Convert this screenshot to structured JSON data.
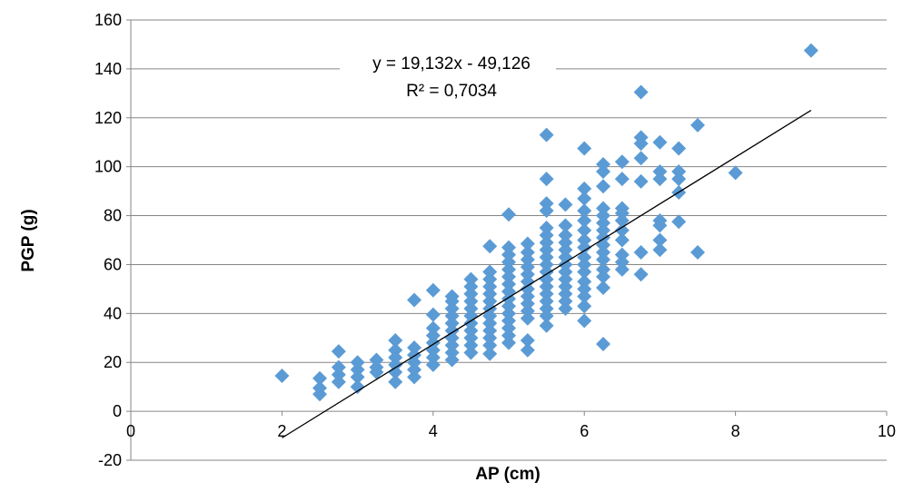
{
  "chart_data": {
    "type": "scatter",
    "title": "",
    "xlabel": "AP (cm)",
    "ylabel": "PGP (g)",
    "xlim": [
      0,
      10
    ],
    "ylim": [
      -20,
      160
    ],
    "x_ticks": [
      0,
      2,
      4,
      6,
      8,
      10
    ],
    "y_ticks": [
      -20,
      0,
      20,
      40,
      60,
      80,
      100,
      120,
      140,
      160
    ],
    "grid": "horizontal",
    "legend": "none",
    "colors": {
      "points": "#5b9bd5",
      "trendline": "#000000",
      "grid": "#868686"
    },
    "trendline": {
      "equation": "y = 19,132x - 49,126",
      "r2": "R² = 0,7034",
      "slope": 19.132,
      "intercept": -49.126,
      "x_range": [
        2,
        9
      ]
    },
    "series": [
      {
        "points": [
          [
            2.0,
            14.5
          ],
          [
            2.5,
            7
          ],
          [
            2.5,
            9.5
          ],
          [
            2.5,
            13.5
          ],
          [
            2.75,
            12
          ],
          [
            2.75,
            15
          ],
          [
            2.75,
            18
          ],
          [
            2.75,
            24.5
          ],
          [
            3.0,
            10
          ],
          [
            3.0,
            14
          ],
          [
            3.0,
            17
          ],
          [
            3.0,
            20
          ],
          [
            3.25,
            16
          ],
          [
            3.25,
            18
          ],
          [
            3.25,
            21
          ],
          [
            3.5,
            12
          ],
          [
            3.5,
            16
          ],
          [
            3.5,
            19
          ],
          [
            3.5,
            22
          ],
          [
            3.5,
            25
          ],
          [
            3.5,
            29
          ],
          [
            3.75,
            14
          ],
          [
            3.75,
            17
          ],
          [
            3.75,
            20
          ],
          [
            3.75,
            23
          ],
          [
            3.75,
            26
          ],
          [
            3.75,
            45.5
          ],
          [
            4.0,
            19
          ],
          [
            4.0,
            22
          ],
          [
            4.0,
            25
          ],
          [
            4.0,
            28
          ],
          [
            4.0,
            31
          ],
          [
            4.0,
            34
          ],
          [
            4.0,
            39.5
          ],
          [
            4.0,
            49.5
          ],
          [
            4.25,
            21
          ],
          [
            4.25,
            24
          ],
          [
            4.25,
            27
          ],
          [
            4.25,
            30
          ],
          [
            4.25,
            33
          ],
          [
            4.25,
            36
          ],
          [
            4.25,
            39
          ],
          [
            4.25,
            42
          ],
          [
            4.25,
            45
          ],
          [
            4.25,
            47
          ],
          [
            4.5,
            24
          ],
          [
            4.5,
            27
          ],
          [
            4.5,
            30
          ],
          [
            4.5,
            33
          ],
          [
            4.5,
            36
          ],
          [
            4.5,
            39
          ],
          [
            4.5,
            42
          ],
          [
            4.5,
            45
          ],
          [
            4.5,
            48
          ],
          [
            4.5,
            51
          ],
          [
            4.5,
            54
          ],
          [
            4.75,
            23.5
          ],
          [
            4.75,
            27
          ],
          [
            4.75,
            30
          ],
          [
            4.75,
            33
          ],
          [
            4.75,
            36
          ],
          [
            4.75,
            39
          ],
          [
            4.75,
            42
          ],
          [
            4.75,
            45
          ],
          [
            4.75,
            48
          ],
          [
            4.75,
            51
          ],
          [
            4.75,
            54
          ],
          [
            4.75,
            57
          ],
          [
            4.75,
            67.5
          ],
          [
            5.0,
            28
          ],
          [
            5.0,
            31
          ],
          [
            5.0,
            34
          ],
          [
            5.0,
            37
          ],
          [
            5.0,
            40
          ],
          [
            5.0,
            43
          ],
          [
            5.0,
            46
          ],
          [
            5.0,
            49
          ],
          [
            5.0,
            52
          ],
          [
            5.0,
            55
          ],
          [
            5.0,
            58
          ],
          [
            5.0,
            61
          ],
          [
            5.0,
            64
          ],
          [
            5.0,
            67
          ],
          [
            5.0,
            80.5
          ],
          [
            5.25,
            25
          ],
          [
            5.25,
            29
          ],
          [
            5.25,
            38
          ],
          [
            5.25,
            41
          ],
          [
            5.25,
            44
          ],
          [
            5.25,
            47
          ],
          [
            5.25,
            50
          ],
          [
            5.25,
            53
          ],
          [
            5.25,
            56
          ],
          [
            5.25,
            59
          ],
          [
            5.25,
            62
          ],
          [
            5.25,
            65
          ],
          [
            5.25,
            68.5
          ],
          [
            5.5,
            35
          ],
          [
            5.5,
            39
          ],
          [
            5.5,
            42
          ],
          [
            5.5,
            45
          ],
          [
            5.5,
            48
          ],
          [
            5.5,
            51
          ],
          [
            5.5,
            54
          ],
          [
            5.5,
            57
          ],
          [
            5.5,
            60
          ],
          [
            5.5,
            63
          ],
          [
            5.5,
            66
          ],
          [
            5.5,
            69
          ],
          [
            5.5,
            72
          ],
          [
            5.5,
            75
          ],
          [
            5.5,
            82
          ],
          [
            5.5,
            85
          ],
          [
            5.5,
            95
          ],
          [
            5.5,
            113
          ],
          [
            5.75,
            42
          ],
          [
            5.75,
            45
          ],
          [
            5.75,
            48
          ],
          [
            5.75,
            51
          ],
          [
            5.75,
            54
          ],
          [
            5.75,
            57
          ],
          [
            5.75,
            60
          ],
          [
            5.75,
            63
          ],
          [
            5.75,
            66
          ],
          [
            5.75,
            69
          ],
          [
            5.75,
            72
          ],
          [
            5.75,
            76
          ],
          [
            5.75,
            84.5
          ],
          [
            6.0,
            37
          ],
          [
            6.0,
            43
          ],
          [
            6.0,
            47
          ],
          [
            6.0,
            50
          ],
          [
            6.0,
            53
          ],
          [
            6.0,
            57
          ],
          [
            6.0,
            60
          ],
          [
            6.0,
            63
          ],
          [
            6.0,
            67
          ],
          [
            6.0,
            70
          ],
          [
            6.0,
            74
          ],
          [
            6.0,
            78
          ],
          [
            6.0,
            82
          ],
          [
            6.0,
            87
          ],
          [
            6.0,
            91
          ],
          [
            6.0,
            107.5
          ],
          [
            6.25,
            27.5
          ],
          [
            6.25,
            50.5
          ],
          [
            6.25,
            55
          ],
          [
            6.25,
            58
          ],
          [
            6.25,
            62
          ],
          [
            6.25,
            65
          ],
          [
            6.25,
            68
          ],
          [
            6.25,
            71
          ],
          [
            6.25,
            74
          ],
          [
            6.25,
            77
          ],
          [
            6.25,
            80
          ],
          [
            6.25,
            83
          ],
          [
            6.25,
            92
          ],
          [
            6.25,
            98
          ],
          [
            6.25,
            101
          ],
          [
            6.5,
            58
          ],
          [
            6.5,
            61
          ],
          [
            6.5,
            64
          ],
          [
            6.5,
            70
          ],
          [
            6.5,
            74
          ],
          [
            6.5,
            78
          ],
          [
            6.5,
            81
          ],
          [
            6.5,
            83
          ],
          [
            6.5,
            95
          ],
          [
            6.5,
            102
          ],
          [
            6.75,
            56
          ],
          [
            6.75,
            65
          ],
          [
            6.75,
            94
          ],
          [
            6.75,
            103.5
          ],
          [
            6.75,
            109.5
          ],
          [
            6.75,
            112
          ],
          [
            6.75,
            130.5
          ],
          [
            7.0,
            66
          ],
          [
            7.0,
            70
          ],
          [
            7.0,
            76
          ],
          [
            7.0,
            78
          ],
          [
            7.0,
            95
          ],
          [
            7.0,
            98
          ],
          [
            7.0,
            110
          ],
          [
            7.25,
            77.5
          ],
          [
            7.25,
            89.5
          ],
          [
            7.25,
            95
          ],
          [
            7.25,
            98
          ],
          [
            7.25,
            107.5
          ],
          [
            7.5,
            65
          ],
          [
            7.5,
            117
          ],
          [
            8.0,
            97.5
          ],
          [
            9.0,
            147.5
          ]
        ]
      }
    ]
  }
}
